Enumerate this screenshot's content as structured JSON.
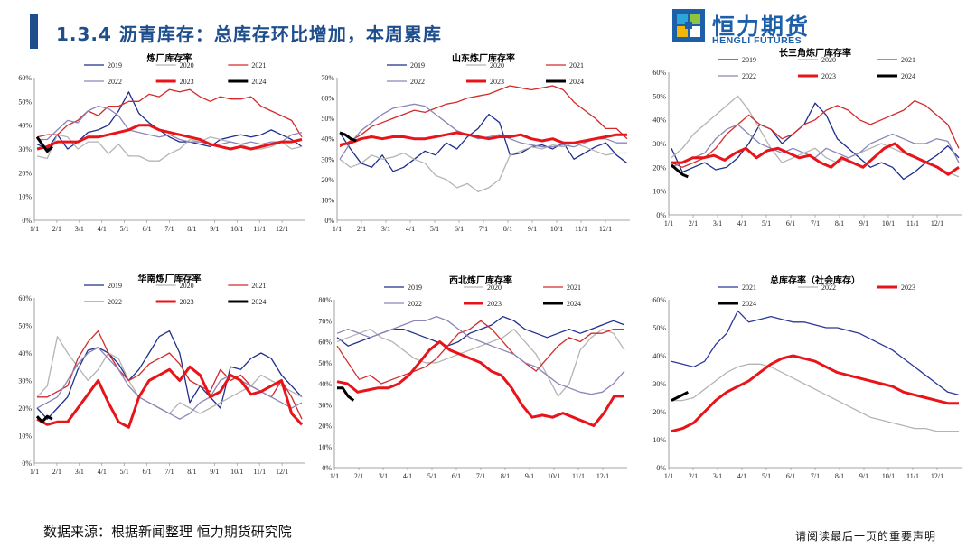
{
  "header": {
    "title": "1.3.4 沥青库存：总库存环比增加，本周累库",
    "logo_cn": "恒力期货",
    "logo_en": "HENGLI FUTURES"
  },
  "footer": {
    "source": "数据来源：根据新闻整理 恒力期货研究院",
    "disclaimer": "请阅读最后一页的重要声明"
  },
  "colors": {
    "2019": "#1f2f8c",
    "2020": "#b4b4b4",
    "2021": "#d42a2a",
    "2022": "#8a86b8",
    "2023": "#e8141a",
    "2024": "#000000",
    "brand": "#1f4e8c"
  },
  "months": [
    "1/1",
    "2/1",
    "3/1",
    "4/1",
    "5/1",
    "6/1",
    "7/1",
    "8/1",
    "9/1",
    "10/1",
    "11/1",
    "12/1"
  ],
  "chart_data": [
    {
      "id": "refinery",
      "type": "line",
      "title": "炼厂库存率",
      "ylim": [
        0,
        60
      ],
      "yticks": [
        "0%",
        "10%",
        "20%",
        "30%",
        "40%",
        "50%",
        "60%"
      ],
      "legend": "top",
      "series": [
        {
          "name": "2019",
          "key": "2019",
          "width": 1.3,
          "values": [
            32,
            30,
            36,
            30,
            33,
            37,
            38,
            40,
            46,
            54,
            45,
            41,
            38,
            35,
            33,
            33,
            32,
            31,
            34,
            35,
            36,
            35,
            36,
            38,
            36,
            34,
            31
          ]
        },
        {
          "name": "2020",
          "key": "2020",
          "width": 1.3,
          "values": [
            27,
            26,
            36,
            35,
            30,
            33,
            33,
            28,
            32,
            27,
            27,
            25,
            25,
            28,
            30,
            34,
            33,
            35,
            34,
            33,
            32,
            30,
            30,
            31,
            33,
            30,
            31
          ]
        },
        {
          "name": "2021",
          "key": "2021",
          "width": 1.3,
          "values": [
            35,
            36,
            36,
            40,
            42,
            46,
            44,
            48,
            48,
            50,
            50,
            53,
            52,
            55,
            54,
            55,
            52,
            50,
            52,
            51,
            51,
            52,
            48,
            46,
            44,
            42,
            35
          ]
        },
        {
          "name": "2022",
          "key": "2022",
          "width": 1.3,
          "values": [
            34,
            34,
            38,
            42,
            41,
            46,
            48,
            47,
            44,
            38,
            37,
            36,
            35,
            36,
            34,
            33,
            33,
            32,
            32,
            33,
            32,
            33,
            32,
            33,
            33,
            36,
            37
          ]
        },
        {
          "name": "2023",
          "key": "2023",
          "width": 3,
          "values": [
            30,
            31,
            33,
            33,
            33,
            35,
            35,
            36,
            37,
            38,
            40,
            40,
            38,
            37,
            36,
            35,
            34,
            32,
            31,
            30,
            31,
            30,
            31,
            32,
            33,
            33,
            34
          ]
        },
        {
          "name": "2024",
          "key": "2024",
          "width": 3,
          "values": [
            35,
            32,
            29,
            31
          ]
        }
      ]
    },
    {
      "id": "shandong",
      "type": "line",
      "title": "山东炼厂库存率",
      "ylim": [
        0,
        70
      ],
      "yticks": [
        "0%",
        "10%",
        "20%",
        "30%",
        "40%",
        "50%",
        "60%",
        "70%"
      ],
      "legend": "top",
      "series": [
        {
          "name": "2019",
          "key": "2019",
          "width": 1.3,
          "values": [
            43,
            35,
            28,
            26,
            32,
            24,
            26,
            30,
            34,
            32,
            38,
            35,
            41,
            45,
            52,
            48,
            32,
            33,
            36,
            37,
            35,
            38,
            30,
            33,
            36,
            38,
            32,
            28
          ]
        },
        {
          "name": "2020",
          "key": "2020",
          "width": 1.3,
          "values": [
            30,
            26,
            28,
            32,
            30,
            31,
            33,
            30,
            28,
            22,
            20,
            16,
            18,
            14,
            16,
            20,
            32,
            34,
            36,
            35,
            37,
            36,
            38,
            36,
            34,
            32,
            33,
            33
          ]
        },
        {
          "name": "2021",
          "key": "2021",
          "width": 1.3,
          "values": [
            36,
            39,
            42,
            46,
            48,
            50,
            52,
            54,
            53,
            55,
            57,
            58,
            60,
            61,
            62,
            64,
            66,
            65,
            64,
            65,
            66,
            64,
            58,
            54,
            50,
            45,
            45,
            40
          ]
        },
        {
          "name": "2022",
          "key": "2022",
          "width": 1.3,
          "values": [
            30,
            38,
            44,
            48,
            52,
            55,
            56,
            57,
            56,
            52,
            48,
            44,
            42,
            40,
            41,
            42,
            40,
            38,
            37,
            36,
            36,
            37,
            36,
            38,
            40,
            40,
            38,
            38
          ]
        },
        {
          "name": "2023",
          "key": "2023",
          "width": 3,
          "values": [
            37,
            38,
            40,
            41,
            40,
            41,
            41,
            40,
            40,
            41,
            42,
            43,
            42,
            41,
            40,
            41,
            41,
            42,
            40,
            39,
            40,
            38,
            38,
            39,
            40,
            41,
            42,
            42
          ]
        },
        {
          "name": "2024",
          "key": "2024",
          "width": 3,
          "values": [
            43,
            42,
            40,
            39
          ]
        }
      ]
    },
    {
      "id": "yangtze",
      "type": "line",
      "title": "长三角炼厂库存率",
      "ylim": [
        0,
        60
      ],
      "yticks": [
        "0%",
        "10%",
        "20%",
        "30%",
        "40%",
        "50%",
        "60%"
      ],
      "legend": "top",
      "series": [
        {
          "name": "2019",
          "key": "2019",
          "width": 1.3,
          "values": [
            28,
            18,
            20,
            22,
            19,
            20,
            24,
            30,
            38,
            36,
            30,
            34,
            38,
            47,
            42,
            32,
            28,
            24,
            20,
            22,
            20,
            15,
            18,
            22,
            25,
            29,
            24
          ]
        },
        {
          "name": "2020",
          "key": "2020",
          "width": 1.3,
          "values": [
            24,
            28,
            34,
            38,
            42,
            46,
            50,
            44,
            36,
            28,
            22,
            24,
            26,
            28,
            24,
            22,
            24,
            26,
            28,
            30,
            28,
            26,
            24,
            22,
            20,
            18,
            16
          ]
        },
        {
          "name": "2021",
          "key": "2021",
          "width": 1.3,
          "values": [
            22,
            20,
            22,
            24,
            28,
            34,
            38,
            42,
            38,
            36,
            32,
            34,
            38,
            40,
            44,
            46,
            44,
            40,
            38,
            40,
            42,
            44,
            48,
            46,
            42,
            38,
            28
          ]
        },
        {
          "name": "2022",
          "key": "2022",
          "width": 1.3,
          "values": [
            20,
            22,
            24,
            26,
            32,
            36,
            38,
            34,
            30,
            28,
            26,
            28,
            26,
            24,
            28,
            26,
            24,
            26,
            30,
            32,
            34,
            32,
            30,
            30,
            32,
            31,
            22
          ]
        },
        {
          "name": "2023",
          "key": "2023",
          "width": 3,
          "values": [
            22,
            22,
            24,
            24,
            25,
            23,
            26,
            28,
            24,
            27,
            28,
            26,
            24,
            25,
            22,
            20,
            24,
            22,
            20,
            24,
            28,
            30,
            26,
            24,
            22,
            20,
            17,
            20
          ]
        },
        {
          "name": "2024",
          "key": "2024",
          "width": 3,
          "values": [
            21,
            19,
            17,
            16
          ]
        }
      ]
    },
    {
      "id": "south",
      "type": "line",
      "title": "华南炼厂库存率",
      "ylim": [
        0,
        60
      ],
      "yticks": [
        "0%",
        "10%",
        "20%",
        "30%",
        "40%",
        "50%",
        "60%"
      ],
      "legend": "top",
      "series": [
        {
          "name": "2019",
          "key": "2019",
          "width": 1.3,
          "values": [
            20,
            16,
            20,
            24,
            34,
            41,
            42,
            40,
            36,
            30,
            34,
            40,
            46,
            48,
            40,
            22,
            28,
            24,
            20,
            35,
            34,
            38,
            40,
            38,
            32,
            28,
            24
          ]
        },
        {
          "name": "2020",
          "key": "2020",
          "width": 1.3,
          "values": [
            24,
            28,
            46,
            40,
            35,
            30,
            34,
            40,
            38,
            30,
            24,
            22,
            20,
            18,
            22,
            20,
            18,
            20,
            22,
            24,
            26,
            28,
            32,
            30,
            28,
            26,
            24
          ]
        },
        {
          "name": "2021",
          "key": "2021",
          "width": 1.3,
          "values": [
            24,
            24,
            26,
            28,
            38,
            44,
            48,
            40,
            34,
            30,
            32,
            36,
            38,
            40,
            36,
            30,
            28,
            26,
            34,
            30,
            32,
            28,
            26,
            24,
            30,
            24,
            16
          ]
        },
        {
          "name": "2022",
          "key": "2022",
          "width": 1.3,
          "values": [
            20,
            22,
            24,
            30,
            36,
            40,
            42,
            38,
            34,
            28,
            24,
            22,
            20,
            18,
            16,
            18,
            22,
            24,
            30,
            32,
            30,
            28,
            26,
            24,
            22,
            20,
            22
          ]
        },
        {
          "name": "2023",
          "key": "2023",
          "width": 3,
          "values": [
            16,
            14,
            15,
            15,
            20,
            25,
            30,
            22,
            15,
            13,
            24,
            30,
            32,
            34,
            30,
            35,
            32,
            24,
            26,
            32,
            30,
            25,
            26,
            28,
            30,
            18,
            14
          ]
        },
        {
          "name": "2024",
          "key": "2024",
          "width": 3,
          "values": [
            17,
            15,
            17,
            16
          ]
        }
      ]
    },
    {
      "id": "northwest",
      "type": "line",
      "title": "西北炼厂库存率",
      "ylim": [
        0,
        80
      ],
      "yticks": [
        "0%",
        "10%",
        "20%",
        "30%",
        "40%",
        "50%",
        "60%",
        "70%",
        "80%"
      ],
      "legend": "top",
      "series": [
        {
          "name": "2019",
          "key": "2019",
          "width": 1.3,
          "values": [
            62,
            58,
            60,
            62,
            64,
            66,
            66,
            64,
            62,
            60,
            58,
            60,
            64,
            66,
            68,
            72,
            70,
            66,
            64,
            62,
            64,
            66,
            64,
            66,
            68,
            70,
            68
          ]
        },
        {
          "name": "2020",
          "key": "2020",
          "width": 1.3,
          "values": [
            60,
            62,
            64,
            66,
            62,
            60,
            56,
            52,
            50,
            50,
            52,
            54,
            56,
            58,
            60,
            62,
            66,
            60,
            54,
            44,
            34,
            40,
            56,
            62,
            66,
            64,
            56
          ]
        },
        {
          "name": "2021",
          "key": "2021",
          "width": 1.3,
          "values": [
            58,
            50,
            42,
            44,
            40,
            42,
            44,
            46,
            48,
            52,
            58,
            64,
            66,
            70,
            66,
            60,
            54,
            50,
            46,
            52,
            58,
            62,
            60,
            64,
            64,
            66,
            66
          ]
        },
        {
          "name": "2022",
          "key": "2022",
          "width": 1.3,
          "values": [
            64,
            66,
            64,
            62,
            64,
            66,
            68,
            70,
            70,
            72,
            70,
            66,
            62,
            60,
            58,
            56,
            54,
            50,
            48,
            44,
            40,
            38,
            36,
            35,
            36,
            40,
            46
          ]
        },
        {
          "name": "2023",
          "key": "2023",
          "width": 3,
          "values": [
            41,
            40,
            36,
            37,
            38,
            38,
            40,
            44,
            50,
            56,
            60,
            56,
            54,
            52,
            50,
            46,
            44,
            38,
            30,
            24,
            25,
            24,
            26,
            24,
            22,
            20,
            26,
            34,
            34
          ]
        },
        {
          "name": "2024",
          "key": "2024",
          "width": 3,
          "values": [
            38,
            38,
            34,
            32
          ]
        }
      ]
    },
    {
      "id": "total",
      "type": "line",
      "title": "总库存率（社会库存）",
      "ylim": [
        0,
        60
      ],
      "yticks": [
        "0%",
        "10%",
        "20%",
        "30%",
        "40%",
        "50%",
        "60%"
      ],
      "legend": "top",
      "series": [
        {
          "name": "2021",
          "key": "2021_b",
          "width": 1.3,
          "values": [
            38,
            37,
            36,
            38,
            44,
            48,
            56,
            52,
            53,
            54,
            53,
            52,
            52,
            51,
            50,
            50,
            49,
            48,
            46,
            44,
            42,
            39,
            36,
            33,
            30,
            27,
            26
          ]
        },
        {
          "name": "2022",
          "key": "2020",
          "width": 1.3,
          "values": [
            24,
            24,
            25,
            28,
            31,
            34,
            36,
            37,
            37,
            36,
            34,
            32,
            30,
            28,
            26,
            24,
            22,
            20,
            18,
            17,
            16,
            15,
            14,
            14,
            13,
            13,
            13
          ]
        },
        {
          "name": "2023",
          "key": "2023",
          "width": 3,
          "values": [
            13,
            14,
            16,
            20,
            24,
            27,
            29,
            31,
            34,
            37,
            39,
            40,
            39,
            38,
            36,
            34,
            33,
            32,
            31,
            30,
            29,
            27,
            26,
            25,
            24,
            23,
            23
          ]
        },
        {
          "name": "2024",
          "key": "2024",
          "width": 3,
          "values": [
            24,
            25,
            26,
            27
          ]
        }
      ]
    }
  ]
}
